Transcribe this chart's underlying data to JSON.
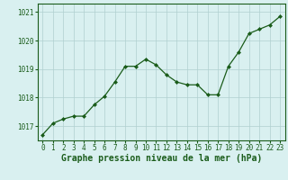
{
  "x": [
    0,
    1,
    2,
    3,
    4,
    5,
    6,
    7,
    8,
    9,
    10,
    11,
    12,
    13,
    14,
    15,
    16,
    17,
    18,
    19,
    20,
    21,
    22,
    23
  ],
  "y": [
    1016.7,
    1017.1,
    1017.25,
    1017.35,
    1017.35,
    1017.75,
    1018.05,
    1018.55,
    1019.1,
    1019.1,
    1019.35,
    1019.15,
    1018.8,
    1018.55,
    1018.45,
    1018.45,
    1018.1,
    1018.1,
    1019.1,
    1019.6,
    1020.25,
    1020.4,
    1020.55,
    1020.85
  ],
  "ylim": [
    1016.5,
    1021.3
  ],
  "yticks": [
    1017,
    1018,
    1019,
    1020,
    1021
  ],
  "xticks": [
    0,
    1,
    2,
    3,
    4,
    5,
    6,
    7,
    8,
    9,
    10,
    11,
    12,
    13,
    14,
    15,
    16,
    17,
    18,
    19,
    20,
    21,
    22,
    23
  ],
  "xlabel": "Graphe pression niveau de la mer (hPa)",
  "line_color": "#1a5c1a",
  "marker": "D",
  "marker_size": 2.0,
  "bg_color": "#d9f0f0",
  "grid_color": "#b0d0d0",
  "tick_label_color": "#1a5c1a",
  "xlabel_color": "#1a5c1a",
  "xlabel_fontsize": 7.0,
  "tick_fontsize": 5.5,
  "linewidth": 0.9
}
